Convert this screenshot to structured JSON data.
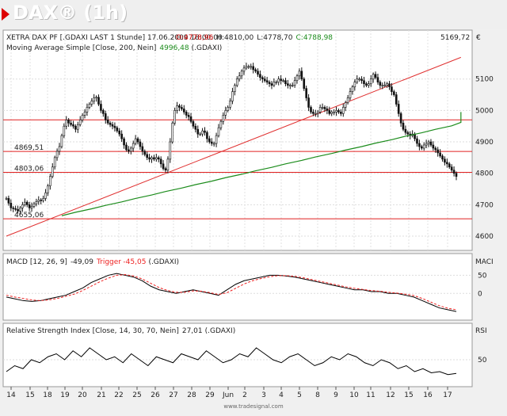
{
  "page": {
    "title": "DAX® (1h)",
    "footer": "www.tradesignal.com",
    "colors": {
      "accent": "#dd0000",
      "ma": "#1c8c1c",
      "macd": "#000000",
      "trigger": "#ee2222",
      "candle": "#111111"
    }
  },
  "chart_data": [
    {
      "type": "candlestick",
      "title": "XETRA DAX PF [.GDAXI LAST 1 Stunde] 17.06.2009 18:00:00",
      "quote": {
        "o_label": "O:",
        "o": "4778,96",
        "h_label": "H:",
        "h": "4810,00",
        "l_label": "L:",
        "l": "4778,70",
        "c_label": "C:",
        "c": "4788,98"
      },
      "subtitle": "Moving Average Simple [Close, 200, Nein]",
      "ma_value": "4996,48",
      "ma_source": "(.GDAXI)",
      "y_ticks": [
        "5100",
        "5000",
        "4900",
        "4800",
        "4700",
        "4600"
      ],
      "ylim": [
        4595,
        5175
      ],
      "horizontal_levels": [
        {
          "value": 4869.51,
          "label": "4869,51"
        },
        {
          "value": 4803.06,
          "label": "4803,06"
        },
        {
          "value": 4655.06,
          "label": "4655,06"
        },
        {
          "value": 4970,
          "label": ""
        }
      ],
      "trendline": {
        "from": [
          0,
          4600
        ],
        "to": [
          197,
          5169
        ],
        "label": "5169,72",
        "unit": "€"
      },
      "close": [
        4720,
        4705,
        4690,
        4688,
        4685,
        4680,
        4690,
        4700,
        4708,
        4700,
        4690,
        4695,
        4703,
        4710,
        4715,
        4713,
        4720,
        4738,
        4760,
        4790,
        4820,
        4850,
        4870,
        4885,
        4920,
        4950,
        4970,
        4960,
        4955,
        4950,
        4940,
        4955,
        4970,
        4985,
        4995,
        5010,
        5020,
        5030,
        5040,
        5042,
        5020,
        5000,
        4990,
        4970,
        4960,
        4955,
        4950,
        4945,
        4935,
        4925,
        4910,
        4890,
        4875,
        4870,
        4880,
        4895,
        4910,
        4900,
        4885,
        4870,
        4860,
        4850,
        4845,
        4850,
        4845,
        4850,
        4845,
        4830,
        4815,
        4810,
        4845,
        4900,
        4960,
        5000,
        5015,
        5010,
        5005,
        4995,
        4985,
        4980,
        4965,
        4950,
        4940,
        4925,
        4925,
        4935,
        4930,
        4910,
        4900,
        4895,
        4895,
        4920,
        4945,
        4965,
        4985,
        5000,
        5010,
        5030,
        5060,
        5080,
        5100,
        5110,
        5125,
        5135,
        5140,
        5140,
        5140,
        5130,
        5125,
        5115,
        5105,
        5100,
        5095,
        5090,
        5085,
        5080,
        5090,
        5090,
        5100,
        5095,
        5095,
        5085,
        5080,
        5080,
        5080,
        5095,
        5110,
        5125,
        5100,
        5070,
        5040,
        5010,
        4995,
        4990,
        4990,
        4995,
        5010,
        5010,
        5005,
        5000,
        4990,
        4995,
        4995,
        5000,
        4995,
        4990,
        5010,
        5025,
        5040,
        5060,
        5075,
        5090,
        5100,
        5100,
        5095,
        5085,
        5080,
        5085,
        5100,
        5115,
        5105,
        5090,
        5080,
        5080,
        5080,
        5085,
        5075,
        5060,
        5050,
        5020,
        4990,
        4960,
        4940,
        4930,
        4925,
        4920,
        4925,
        4910,
        4895,
        4885,
        4880,
        4890,
        4895,
        4900,
        4890,
        4880,
        4875,
        4865,
        4855,
        4845,
        4835,
        4830,
        4820,
        4810,
        4800,
        4790
      ],
      "ma": [
        4665,
        4676,
        4687,
        4698,
        4709,
        4720,
        4731,
        4742,
        4753,
        4764,
        4775,
        4786,
        4797,
        4808,
        4819,
        4830,
        4841,
        4852,
        4863,
        4874,
        4885,
        4896,
        4907,
        4918,
        4929,
        4940,
        4951,
        4962,
        4973,
        4984,
        4995
      ],
      "ma_x": [
        24,
        30,
        37,
        43,
        50,
        56,
        63,
        69,
        76,
        82,
        89,
        95,
        102,
        108,
        115,
        121,
        128,
        134,
        141,
        147,
        154,
        160,
        167,
        173,
        180,
        186,
        193,
        197,
        197,
        197,
        197
      ]
    },
    {
      "type": "line",
      "title": "MACD [12, 26, 9]",
      "macd_value": "-49,09",
      "trigger_label": "Trigger",
      "trigger_value": "-45,05",
      "source": "(.GDAXI)",
      "axis_name": "MACI",
      "y_ticks": [
        "50",
        "0"
      ],
      "ylim": [
        -65,
        75
      ],
      "macd": [
        -10,
        -15,
        -20,
        -22,
        -20,
        -15,
        -10,
        -5,
        5,
        15,
        30,
        40,
        50,
        55,
        50,
        45,
        35,
        20,
        10,
        5,
        0,
        5,
        10,
        5,
        0,
        -5,
        10,
        25,
        35,
        40,
        45,
        50,
        50,
        48,
        45,
        40,
        35,
        30,
        25,
        20,
        15,
        10,
        10,
        5,
        5,
        0,
        0,
        -5,
        -10,
        -20,
        -30,
        -40,
        -45,
        -50
      ],
      "trigger": [
        -5,
        -10,
        -14,
        -18,
        -20,
        -18,
        -14,
        -8,
        -2,
        8,
        20,
        32,
        42,
        50,
        52,
        48,
        40,
        28,
        16,
        8,
        3,
        3,
        7,
        6,
        2,
        -3,
        2,
        14,
        26,
        35,
        41,
        46,
        49,
        49,
        47,
        43,
        38,
        33,
        28,
        23,
        18,
        14,
        11,
        8,
        6,
        3,
        1,
        -2,
        -6,
        -14,
        -24,
        -34,
        -41,
        -45
      ]
    },
    {
      "type": "line",
      "title": "Relative Strength Index [Close, 14, 30, 70, Nein]",
      "rsi_value": "27,01",
      "source": "(.GDAXI)",
      "axis_name": "RSI",
      "y_ticks": [
        "50"
      ],
      "ylim": [
        10,
        90
      ],
      "rsi": [
        30,
        40,
        35,
        50,
        45,
        55,
        60,
        50,
        65,
        55,
        70,
        60,
        50,
        55,
        45,
        60,
        50,
        40,
        55,
        50,
        45,
        60,
        55,
        50,
        65,
        55,
        45,
        50,
        60,
        55,
        70,
        60,
        50,
        45,
        55,
        60,
        50,
        40,
        45,
        55,
        50,
        60,
        55,
        45,
        40,
        50,
        45,
        35,
        40,
        30,
        35,
        28,
        30,
        25,
        27
      ]
    }
  ],
  "x_axis": {
    "ticks": [
      "14",
      "15",
      "18",
      "19",
      "20",
      "21",
      "22",
      "25",
      "26",
      "27",
      "28",
      "29",
      "Jun",
      "2",
      "3",
      "4",
      "5",
      "8",
      "9",
      "10",
      "11",
      "12",
      "15",
      "16",
      "17"
    ],
    "tick_positions": [
      14,
      38,
      60,
      82,
      104,
      128,
      150,
      173,
      196,
      219,
      242,
      265,
      288,
      309,
      333,
      355,
      378,
      401,
      424,
      447,
      468,
      493,
      516,
      540,
      565
    ]
  }
}
